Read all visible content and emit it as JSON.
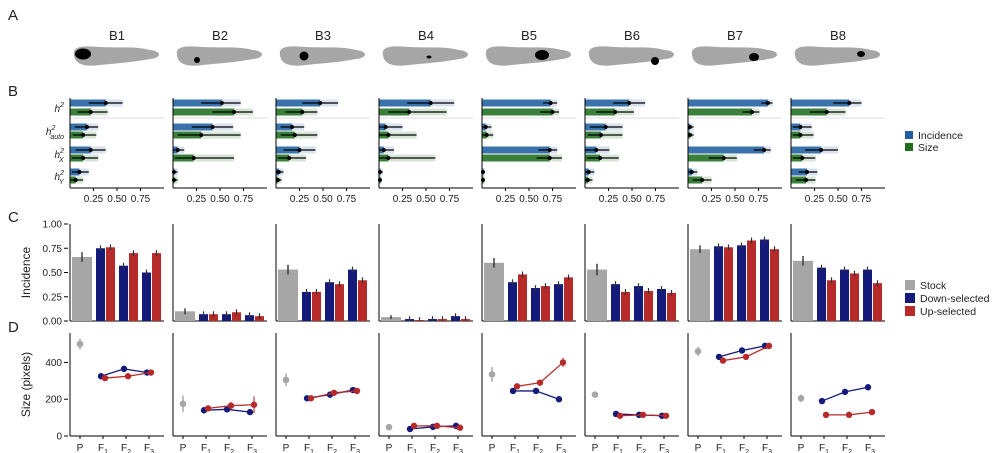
{
  "figure": {
    "panel_labels": [
      "A",
      "B",
      "C",
      "D"
    ],
    "blocks": [
      "B1",
      "B2",
      "B3",
      "B4",
      "B5",
      "B6",
      "B7",
      "B8"
    ],
    "colors": {
      "incidence": "#1f5fa0",
      "size": "#1e6e1e",
      "stock": "#a6a6a6",
      "down": "#141a7a",
      "up": "#b62a2a",
      "shape": "#a6a6a6",
      "spot": "#000000"
    }
  },
  "chart_data": [
    {
      "panel": "B",
      "type": "bar",
      "title": "",
      "xlabel": "",
      "ylabel": "",
      "xlim": [
        0,
        1
      ],
      "x_ticks": [
        "0.25",
        "0.50",
        "0.75"
      ],
      "row_labels": [
        {
          "base": "h",
          "sup": "2",
          "sub": ""
        },
        {
          "base": "h",
          "sup": "2",
          "sub": "auto"
        },
        {
          "base": "h",
          "sup": "2",
          "sub": "X"
        },
        {
          "base": "h",
          "sup": "2",
          "sub": "Y"
        }
      ],
      "legend": [
        "Incidence",
        "Size"
      ],
      "legend_position": "right",
      "series": [
        {
          "name": "Incidence",
          "values": [
            [
              0.38,
              0.18,
              0.22,
              0.1
            ],
            [
              0.52,
              0.42,
              0.05,
              0.01
            ],
            [
              0.47,
              0.17,
              0.25,
              0.03
            ],
            [
              0.55,
              0.07,
              0.05,
              0.01
            ],
            [
              0.73,
              0.04,
              0.72,
              0.01
            ],
            [
              0.47,
              0.22,
              0.12,
              0.04
            ],
            [
              0.85,
              0.02,
              0.81,
              0.04
            ],
            [
              0.62,
              0.1,
              0.32,
              0.17
            ]
          ],
          "ci": [
            [
              [
                0.2,
                0.56
              ],
              [
                0.05,
                0.3
              ],
              [
                0.06,
                0.38
              ],
              [
                0.02,
                0.2
              ]
            ],
            [
              [
                0.3,
                0.72
              ],
              [
                0.2,
                0.64
              ],
              [
                0.0,
                0.12
              ],
              [
                0.0,
                0.05
              ]
            ],
            [
              [
                0.28,
                0.66
              ],
              [
                0.05,
                0.3
              ],
              [
                0.08,
                0.42
              ],
              [
                0.0,
                0.08
              ]
            ],
            [
              [
                0.3,
                0.8
              ],
              [
                0.0,
                0.25
              ],
              [
                0.0,
                0.16
              ],
              [
                0.0,
                0.04
              ]
            ],
            [
              [
                0.65,
                0.8
              ],
              [
                0.0,
                0.1
              ],
              [
                0.6,
                0.8
              ],
              [
                0.0,
                0.03
              ]
            ],
            [
              [
                0.3,
                0.64
              ],
              [
                0.05,
                0.4
              ],
              [
                0.0,
                0.26
              ],
              [
                0.0,
                0.1
              ]
            ],
            [
              [
                0.78,
                0.9
              ],
              [
                0.0,
                0.06
              ],
              [
                0.7,
                0.88
              ],
              [
                0.0,
                0.1
              ]
            ],
            [
              [
                0.45,
                0.75
              ],
              [
                0.02,
                0.22
              ],
              [
                0.15,
                0.5
              ],
              [
                0.08,
                0.28
              ]
            ]
          ]
        },
        {
          "name": "Size",
          "values": [
            [
              0.22,
              0.14,
              0.14,
              0.06
            ],
            [
              0.65,
              0.3,
              0.22,
              0.01
            ],
            [
              0.28,
              0.2,
              0.14,
              0.02
            ],
            [
              0.32,
              0.1,
              0.1,
              0.01
            ],
            [
              0.75,
              0.05,
              0.72,
              0.01
            ],
            [
              0.32,
              0.17,
              0.16,
              0.03
            ],
            [
              0.68,
              0.02,
              0.38,
              0.15
            ],
            [
              0.38,
              0.1,
              0.12,
              0.16
            ]
          ],
          "ci": [
            [
              [
                0.08,
                0.4
              ],
              [
                0.03,
                0.28
              ],
              [
                0.02,
                0.3
              ],
              [
                0.0,
                0.14
              ]
            ],
            [
              [
                0.42,
                0.85
              ],
              [
                0.05,
                0.72
              ],
              [
                0.02,
                0.65
              ],
              [
                0.0,
                0.05
              ]
            ],
            [
              [
                0.1,
                0.44
              ],
              [
                0.05,
                0.44
              ],
              [
                0.02,
                0.32
              ],
              [
                0.0,
                0.06
              ]
            ],
            [
              [
                0.1,
                0.72
              ],
              [
                0.0,
                0.4
              ],
              [
                0.0,
                0.6
              ],
              [
                0.0,
                0.03
              ]
            ],
            [
              [
                0.62,
                0.82
              ],
              [
                0.0,
                0.12
              ],
              [
                0.58,
                0.85
              ],
              [
                0.0,
                0.03
              ]
            ],
            [
              [
                0.12,
                0.52
              ],
              [
                0.03,
                0.4
              ],
              [
                0.02,
                0.36
              ],
              [
                0.0,
                0.08
              ]
            ],
            [
              [
                0.58,
                0.76
              ],
              [
                0.0,
                0.06
              ],
              [
                0.22,
                0.52
              ],
              [
                0.05,
                0.25
              ]
            ],
            [
              [
                0.2,
                0.58
              ],
              [
                0.02,
                0.24
              ],
              [
                0.02,
                0.26
              ],
              [
                0.05,
                0.26
              ]
            ]
          ]
        }
      ]
    },
    {
      "panel": "C",
      "type": "bar",
      "title": "",
      "xlabel": "",
      "ylabel": "Incidence",
      "ylim": [
        0,
        1
      ],
      "y_ticks": [
        "0.00",
        "0.25",
        "0.50",
        "0.75",
        "1.00"
      ],
      "legend": [
        "Stock",
        "Down-selected",
        "Up-selected"
      ],
      "legend_position": "right",
      "series": [
        {
          "name": "Stock",
          "values": [
            0.66,
            0.1,
            0.53,
            0.04,
            0.6,
            0.53,
            0.74,
            0.62
          ],
          "err": [
            0.05,
            0.03,
            0.05,
            0.02,
            0.05,
            0.06,
            0.04,
            0.05
          ]
        },
        {
          "name": "Down-selected",
          "values": [
            [
              0.75,
              0.57,
              0.5
            ],
            [
              0.07,
              0.07,
              0.06
            ],
            [
              0.3,
              0.4,
              0.53
            ],
            [
              0.02,
              0.02,
              0.05
            ],
            [
              0.4,
              0.34,
              0.38
            ],
            [
              0.38,
              0.36,
              0.33
            ],
            [
              0.77,
              0.78,
              0.84
            ],
            [
              0.55,
              0.53,
              0.53
            ]
          ],
          "err": 0.03
        },
        {
          "name": "Up-selected",
          "values": [
            [
              0.76,
              0.7,
              0.7
            ],
            [
              0.07,
              0.09,
              0.05
            ],
            [
              0.3,
              0.38,
              0.42
            ],
            [
              0.01,
              0.02,
              0.02
            ],
            [
              0.48,
              0.36,
              0.45
            ],
            [
              0.3,
              0.31,
              0.29
            ],
            [
              0.76,
              0.83,
              0.74
            ],
            [
              0.42,
              0.49,
              0.39
            ]
          ],
          "err": 0.03
        }
      ]
    },
    {
      "panel": "D",
      "type": "line",
      "title": "",
      "xlabel": "",
      "ylabel": "Size (pixels)",
      "ylim": [
        0,
        560
      ],
      "y_ticks": [
        "0",
        "200",
        "400"
      ],
      "x_ticks": [
        {
          "base": "P",
          "sub": ""
        },
        {
          "base": "F",
          "sub": "1"
        },
        {
          "base": "F",
          "sub": "2"
        },
        {
          "base": "F",
          "sub": "3"
        }
      ],
      "series": [
        {
          "name": "Stock",
          "values": [
            500,
            175,
            305,
            48,
            335,
            225,
            460,
            205
          ],
          "err": [
            30,
            45,
            35,
            10,
            40,
            15,
            25,
            20
          ]
        },
        {
          "name": "Down-selected",
          "values": [
            [
              325,
              365,
              345
            ],
            [
              140,
              145,
              130
            ],
            [
              205,
              225,
              250
            ],
            [
              38,
              50,
              55
            ],
            [
              245,
              245,
              200
            ],
            [
              120,
              115,
              110
            ],
            [
              430,
              465,
              490
            ],
            [
              190,
              240,
              265
            ]
          ],
          "err": 12
        },
        {
          "name": "Up-selected",
          "values": [
            [
              315,
              325,
              345
            ],
            [
              150,
              165,
              170
            ],
            [
              205,
              235,
              245
            ],
            [
              55,
              55,
              45
            ],
            [
              270,
              290,
              400
            ],
            [
              110,
              115,
              110
            ],
            [
              410,
              430,
              490
            ],
            [
              115,
              115,
              130
            ]
          ],
          "err": [
            [
              12,
              12,
              12
            ],
            [
              15,
              20,
              45
            ],
            [
              12,
              12,
              12
            ],
            [
              10,
              10,
              10
            ],
            [
              12,
              12,
              25
            ],
            [
              12,
              12,
              12
            ],
            [
              12,
              12,
              12
            ],
            [
              10,
              10,
              10
            ]
          ]
        }
      ]
    }
  ]
}
